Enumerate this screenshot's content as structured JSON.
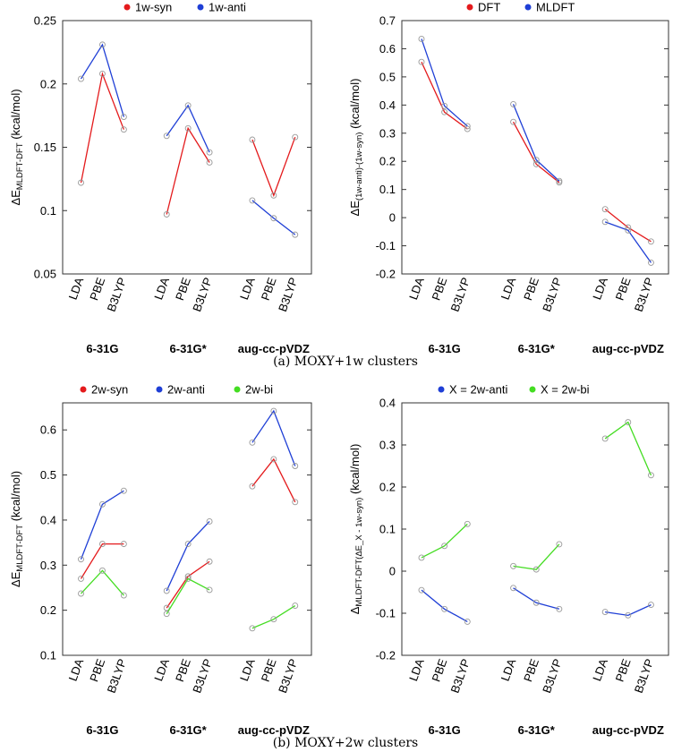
{
  "figure": {
    "caption_a": "(a) MOXY+1w clusters",
    "caption_b": "(b) MOXY+2w clusters"
  },
  "chart_data": [
    {
      "id": "a-left",
      "type": "line",
      "ylabel": "ΔE_MLDFT-DFT (kcal/mol)",
      "ylim": [
        0.05,
        0.25
      ],
      "yticks": [
        0.05,
        0.1,
        0.15,
        0.2,
        0.25
      ],
      "ytick_labels": [
        "0.05",
        "0.1",
        "0.15",
        "0.2",
        "0.25"
      ],
      "groups": [
        "6-31G",
        "6-31G*",
        "aug-cc-pVDZ"
      ],
      "functionals": [
        "LDA",
        "PBE",
        "B3LYP"
      ],
      "series": [
        {
          "name": "1w-syn",
          "color": "#e41a1c",
          "values": [
            [
              0.122,
              0.208,
              0.164
            ],
            [
              0.097,
              0.165,
              0.138
            ],
            [
              0.156,
              0.112,
              0.158
            ]
          ]
        },
        {
          "name": "1w-anti",
          "color": "#1f3fd6",
          "values": [
            [
              0.204,
              0.231,
              0.174
            ],
            [
              0.159,
              0.183,
              0.146
            ],
            [
              0.108,
              0.094,
              0.081
            ]
          ]
        }
      ]
    },
    {
      "id": "a-right",
      "type": "line",
      "ylabel": "ΔE_(1w-anti)-(1w-syn) (kcal/mol)",
      "ylim": [
        -0.2,
        0.7
      ],
      "yticks": [
        -0.2,
        -0.1,
        0,
        0.1,
        0.2,
        0.3,
        0.4,
        0.5,
        0.6,
        0.7
      ],
      "ytick_labels": [
        "-0.2",
        "-0.1",
        "0",
        "0.1",
        "0.2",
        "0.3",
        "0.4",
        "0.5",
        "0.6",
        "0.7"
      ],
      "groups": [
        "6-31G",
        "6-31G*",
        "aug-cc-pVDZ"
      ],
      "functionals": [
        "LDA",
        "PBE",
        "B3LYP"
      ],
      "series": [
        {
          "name": "DFT",
          "color": "#e41a1c",
          "values": [
            [
              0.553,
              0.375,
              0.315
            ],
            [
              0.34,
              0.19,
              0.125
            ],
            [
              0.03,
              -0.035,
              -0.085
            ]
          ]
        },
        {
          "name": "MLDFT",
          "color": "#1f3fd6",
          "values": [
            [
              0.635,
              0.397,
              0.325
            ],
            [
              0.403,
              0.205,
              0.13
            ],
            [
              -0.015,
              -0.045,
              -0.16
            ]
          ]
        }
      ]
    },
    {
      "id": "b-left",
      "type": "line",
      "ylabel": "ΔE_MLDFT-DFT (kcal/mol)",
      "ylim": [
        0.1,
        0.66
      ],
      "yticks": [
        0.1,
        0.2,
        0.3,
        0.4,
        0.5,
        0.6
      ],
      "ytick_labels": [
        "0.1",
        "0.2",
        "0.3",
        "0.4",
        "0.5",
        "0.6"
      ],
      "groups": [
        "6-31G",
        "6-31G*",
        "aug-cc-pVDZ"
      ],
      "functionals": [
        "LDA",
        "PBE",
        "B3LYP"
      ],
      "series": [
        {
          "name": "2w-syn",
          "color": "#e41a1c",
          "values": [
            [
              0.27,
              0.347,
              0.347
            ],
            [
              0.205,
              0.275,
              0.308
            ],
            [
              0.475,
              0.535,
              0.44
            ]
          ]
        },
        {
          "name": "2w-anti",
          "color": "#1f3fd6",
          "values": [
            [
              0.313,
              0.435,
              0.465
            ],
            [
              0.243,
              0.347,
              0.397
            ],
            [
              0.572,
              0.642,
              0.52
            ]
          ]
        },
        {
          "name": "2w-bi",
          "color": "#44dd22",
          "values": [
            [
              0.237,
              0.288,
              0.233
            ],
            [
              0.192,
              0.27,
              0.245
            ],
            [
              0.16,
              0.18,
              0.21
            ]
          ]
        }
      ]
    },
    {
      "id": "b-right",
      "type": "line",
      "ylabel": "Δ_MLDFT-DFT(ΔE_X - 1w-syn) (kcal/mol)",
      "ylim": [
        -0.2,
        0.4
      ],
      "yticks": [
        -0.2,
        -0.1,
        0,
        0.1,
        0.2,
        0.3,
        0.4
      ],
      "ytick_labels": [
        "-0.2",
        "-0.1",
        "0",
        "0.1",
        "0.2",
        "0.3",
        "0.4"
      ],
      "groups": [
        "6-31G",
        "6-31G*",
        "aug-cc-pVDZ"
      ],
      "functionals": [
        "LDA",
        "PBE",
        "B3LYP"
      ],
      "series": [
        {
          "name": "X = 2w-anti",
          "color": "#1f3fd6",
          "values": [
            [
              -0.045,
              -0.09,
              -0.12
            ],
            [
              -0.04,
              -0.075,
              -0.09
            ],
            [
              -0.097,
              -0.105,
              -0.08
            ]
          ]
        },
        {
          "name": "X = 2w-bi",
          "color": "#44dd22",
          "values": [
            [
              0.032,
              0.06,
              0.112
            ],
            [
              0.012,
              0.004,
              0.064
            ],
            [
              0.315,
              0.354,
              0.228
            ]
          ]
        }
      ]
    }
  ]
}
